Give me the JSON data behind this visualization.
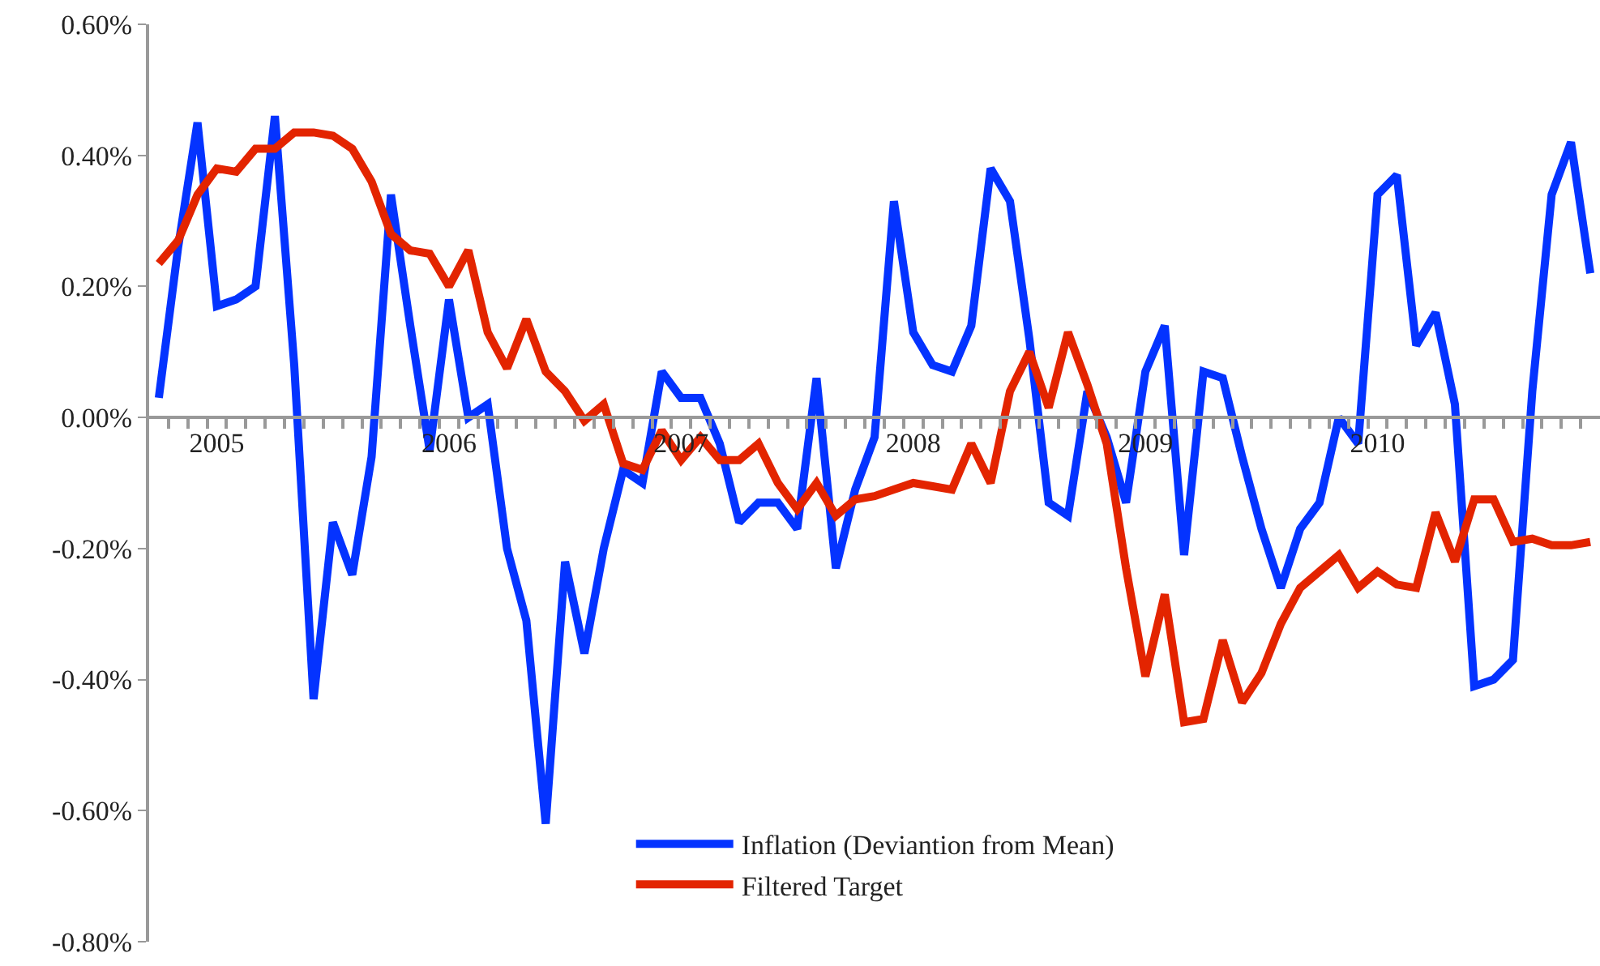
{
  "chart_data": {
    "type": "line",
    "categories": [
      null,
      null,
      null,
      "2005",
      null,
      null,
      null,
      null,
      null,
      null,
      null,
      null,
      null,
      null,
      null,
      "2006",
      null,
      null,
      null,
      null,
      null,
      null,
      null,
      null,
      null,
      null,
      null,
      "2007",
      null,
      null,
      null,
      null,
      null,
      null,
      null,
      null,
      null,
      null,
      null,
      "2008",
      null,
      null,
      null,
      null,
      null,
      null,
      null,
      null,
      null,
      null,
      null,
      "2009",
      null,
      null,
      null,
      null,
      null,
      null,
      null,
      null,
      null,
      null,
      null,
      "2010",
      null,
      null,
      null,
      null,
      null,
      null,
      null,
      null,
      null,
      null,
      null
    ],
    "series": [
      {
        "name": "Inflation (Deviantion from Mean)",
        "color": "#0433ff",
        "values": [
          0.03,
          0.26,
          0.45,
          0.17,
          0.18,
          0.2,
          0.46,
          0.08,
          -0.43,
          -0.16,
          -0.24,
          -0.06,
          0.34,
          0.14,
          -0.05,
          0.18,
          0.0,
          0.02,
          -0.2,
          -0.31,
          -0.62,
          -0.22,
          -0.36,
          -0.2,
          -0.08,
          -0.1,
          0.07,
          0.03,
          0.03,
          -0.04,
          -0.16,
          -0.13,
          -0.13,
          -0.17,
          0.06,
          -0.23,
          -0.11,
          -0.03,
          0.33,
          0.13,
          0.08,
          0.07,
          0.14,
          0.38,
          0.33,
          0.12,
          -0.13,
          -0.15,
          0.04,
          -0.03,
          -0.13,
          0.07,
          0.14,
          -0.21,
          0.07,
          0.06,
          -0.06,
          -0.17,
          -0.26,
          -0.17,
          -0.13,
          0.0,
          -0.04,
          0.34,
          0.37,
          0.11,
          0.16,
          0.02,
          -0.41,
          -0.4,
          -0.37,
          0.04,
          0.34,
          0.42,
          0.22
        ]
      },
      {
        "name": "Filtered Target",
        "color": "#e32400",
        "values": [
          0.235,
          0.27,
          0.34,
          0.38,
          0.375,
          0.41,
          0.41,
          0.435,
          0.435,
          0.43,
          0.41,
          0.36,
          0.28,
          0.255,
          0.25,
          0.2,
          0.255,
          0.13,
          0.075,
          0.15,
          0.07,
          0.04,
          -0.005,
          0.02,
          -0.07,
          -0.08,
          -0.02,
          -0.065,
          -0.03,
          -0.065,
          -0.065,
          -0.04,
          -0.1,
          -0.14,
          -0.1,
          -0.15,
          -0.125,
          -0.12,
          -0.11,
          -0.1,
          -0.105,
          -0.11,
          -0.04,
          -0.1,
          0.04,
          0.1,
          0.015,
          0.13,
          0.05,
          -0.04,
          -0.23,
          -0.395,
          -0.27,
          -0.465,
          -0.46,
          -0.34,
          -0.435,
          -0.39,
          -0.315,
          -0.26,
          -0.235,
          -0.21,
          -0.26,
          -0.235,
          -0.255,
          -0.26,
          -0.145,
          -0.22,
          -0.125,
          -0.125,
          -0.19,
          -0.185,
          -0.195,
          -0.195,
          -0.19
        ]
      }
    ],
    "ylim": [
      -0.8,
      0.6
    ],
    "yticks": [
      {
        "value": -0.8,
        "label": "-0.80%"
      },
      {
        "value": -0.6,
        "label": "-0.60%"
      },
      {
        "value": -0.4,
        "label": "-0.40%"
      },
      {
        "value": -0.2,
        "label": "-0.20%"
      },
      {
        "value": 0,
        "label": "0.00%"
      },
      {
        "value": 0.2,
        "label": "0.20%"
      },
      {
        "value": 0.4,
        "label": "0.40%"
      },
      {
        "value": 0.6,
        "label": "0.60%"
      }
    ],
    "grid": false,
    "legend": "bottom",
    "marker": "none",
    "line_style": "solid"
  }
}
